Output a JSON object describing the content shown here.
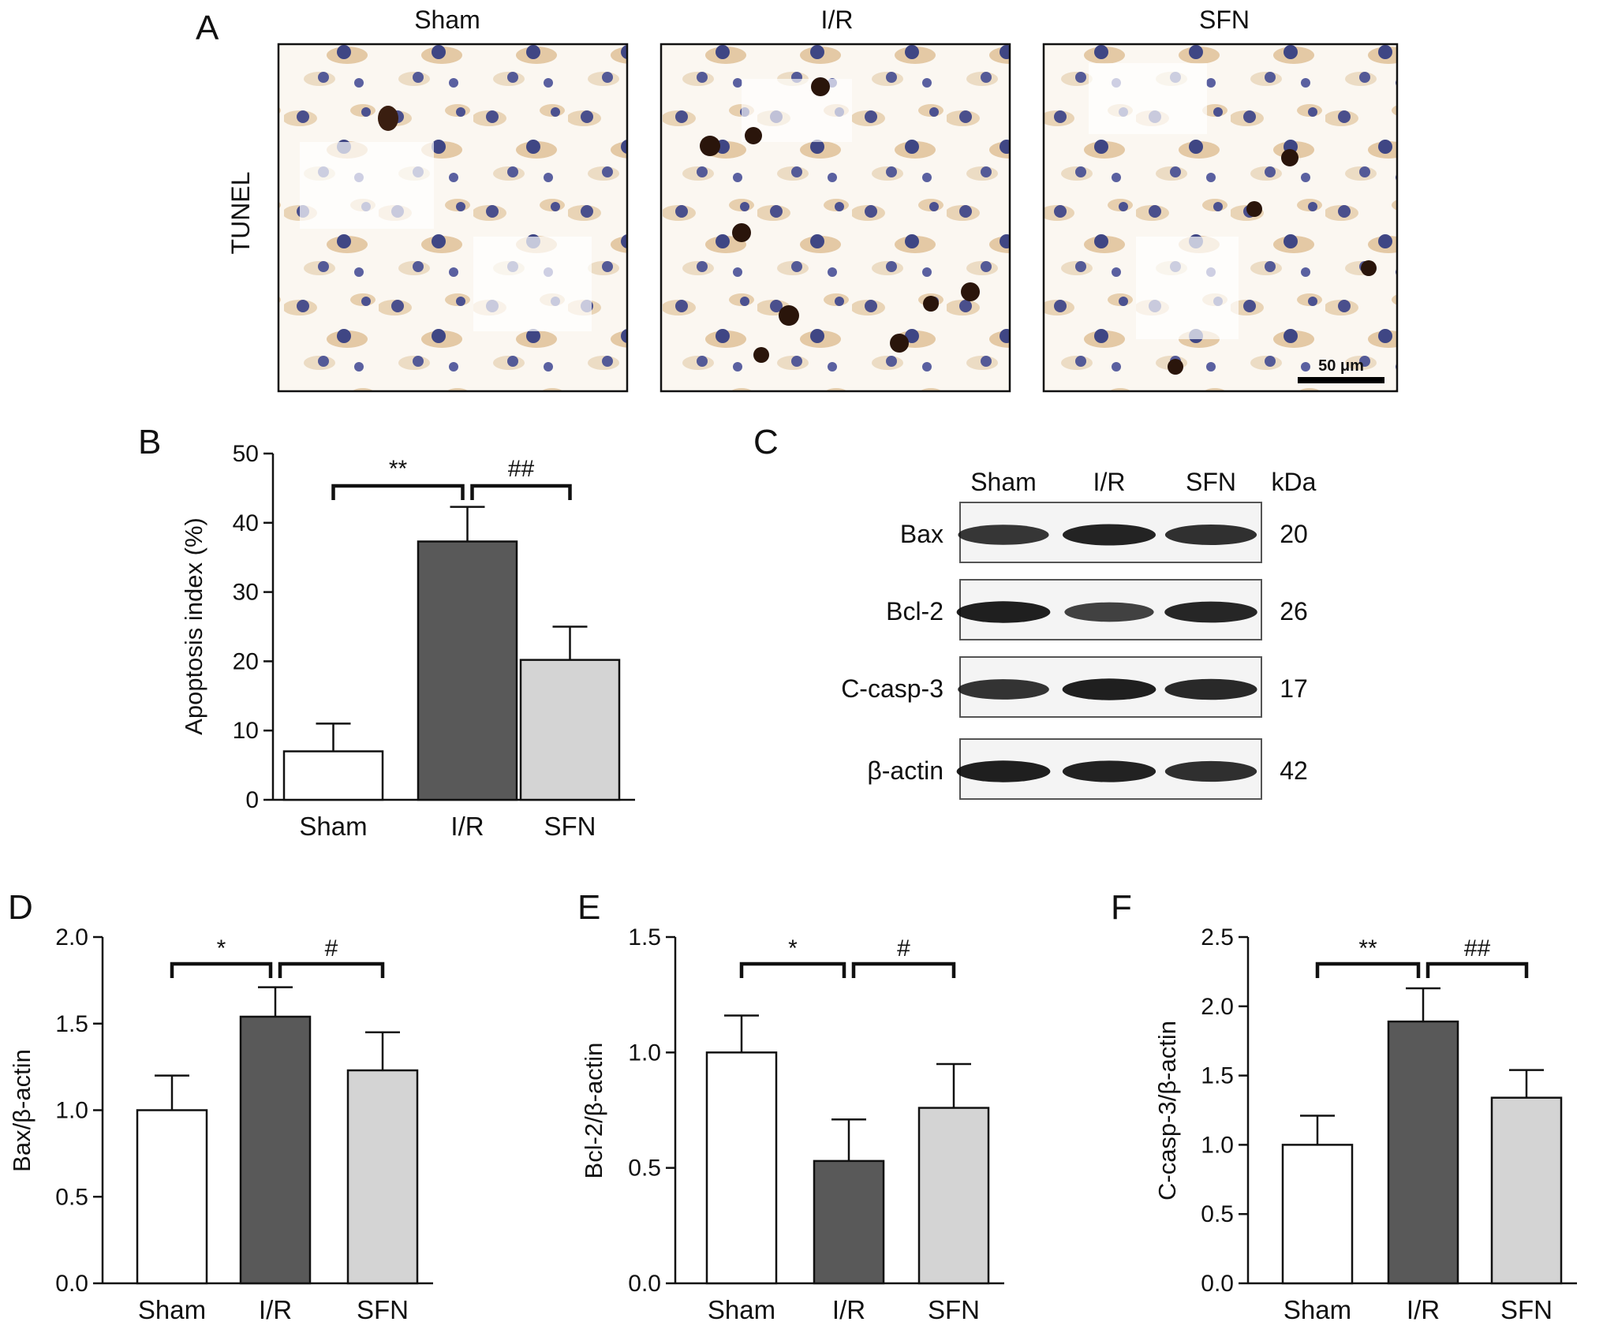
{
  "panels": {
    "A": {
      "letter": "A",
      "row_label": "TUNEL",
      "columns": [
        "Sham",
        "I/R",
        "SFN"
      ],
      "scale_bar": "50 μm"
    },
    "C": {
      "letter": "C",
      "lanes": [
        "Sham",
        "I/R",
        "SFN"
      ],
      "kda_header": "kDa",
      "proteins": [
        {
          "label": "Bax",
          "kda": "20",
          "band_intensity": [
            0.8,
            0.92,
            0.84
          ]
        },
        {
          "label": "Bcl-2",
          "kda": "26",
          "band_intensity": [
            0.95,
            0.72,
            0.9
          ]
        },
        {
          "label": "C-casp-3",
          "kda": "17",
          "band_intensity": [
            0.82,
            0.95,
            0.88
          ]
        },
        {
          "label": "β-actin",
          "kda": "42",
          "band_intensity": [
            0.95,
            0.93,
            0.85
          ]
        }
      ]
    }
  },
  "colors": {
    "sham": "#ffffff",
    "ir": "#595959",
    "sfn": "#d4d4d4",
    "stroke": "#111111"
  },
  "chart_data": [
    {
      "letter": "B",
      "type": "bar",
      "categories": [
        "Sham",
        "I/R",
        "SFN"
      ],
      "values": [
        7,
        37.3,
        20.2
      ],
      "errors": [
        4,
        5,
        4.8
      ],
      "ylabel": "Apoptosis index (%)",
      "ylim": [
        0,
        50
      ],
      "yticks": [
        "0",
        "10",
        "20",
        "30",
        "40",
        "50"
      ],
      "significance": [
        {
          "from": 0,
          "to": 1,
          "label": "**"
        },
        {
          "from": 1,
          "to": 2,
          "label": "##"
        }
      ]
    },
    {
      "letter": "D",
      "type": "bar",
      "categories": [
        "Sham",
        "I/R",
        "SFN"
      ],
      "values": [
        1.0,
        1.54,
        1.23
      ],
      "errors": [
        0.2,
        0.17,
        0.22
      ],
      "ylabel": "Bax/β-actin",
      "ylim": [
        0,
        2.0
      ],
      "yticks": [
        "0.0",
        "0.5",
        "1.0",
        "1.5",
        "2.0"
      ],
      "significance": [
        {
          "from": 0,
          "to": 1,
          "label": "*"
        },
        {
          "from": 1,
          "to": 2,
          "label": "#"
        }
      ]
    },
    {
      "letter": "E",
      "type": "bar",
      "categories": [
        "Sham",
        "I/R",
        "SFN"
      ],
      "values": [
        1.0,
        0.53,
        0.76
      ],
      "errors": [
        0.16,
        0.18,
        0.19
      ],
      "ylabel": "Bcl-2/β-actin",
      "ylim": [
        0,
        1.5
      ],
      "yticks": [
        "0.0",
        "0.5",
        "1.0",
        "1.5"
      ],
      "significance": [
        {
          "from": 0,
          "to": 1,
          "label": "*"
        },
        {
          "from": 1,
          "to": 2,
          "label": "#"
        }
      ]
    },
    {
      "letter": "F",
      "type": "bar",
      "categories": [
        "Sham",
        "I/R",
        "SFN"
      ],
      "values": [
        1.0,
        1.89,
        1.34
      ],
      "errors": [
        0.21,
        0.24,
        0.2
      ],
      "ylabel": "C-casp-3/β-actin",
      "ylim": [
        0,
        2.5
      ],
      "yticks": [
        "0.0",
        "0.5",
        "1.0",
        "1.5",
        "2.0",
        "2.5"
      ],
      "significance": [
        {
          "from": 0,
          "to": 1,
          "label": "**"
        },
        {
          "from": 1,
          "to": 2,
          "label": "##"
        }
      ]
    }
  ]
}
